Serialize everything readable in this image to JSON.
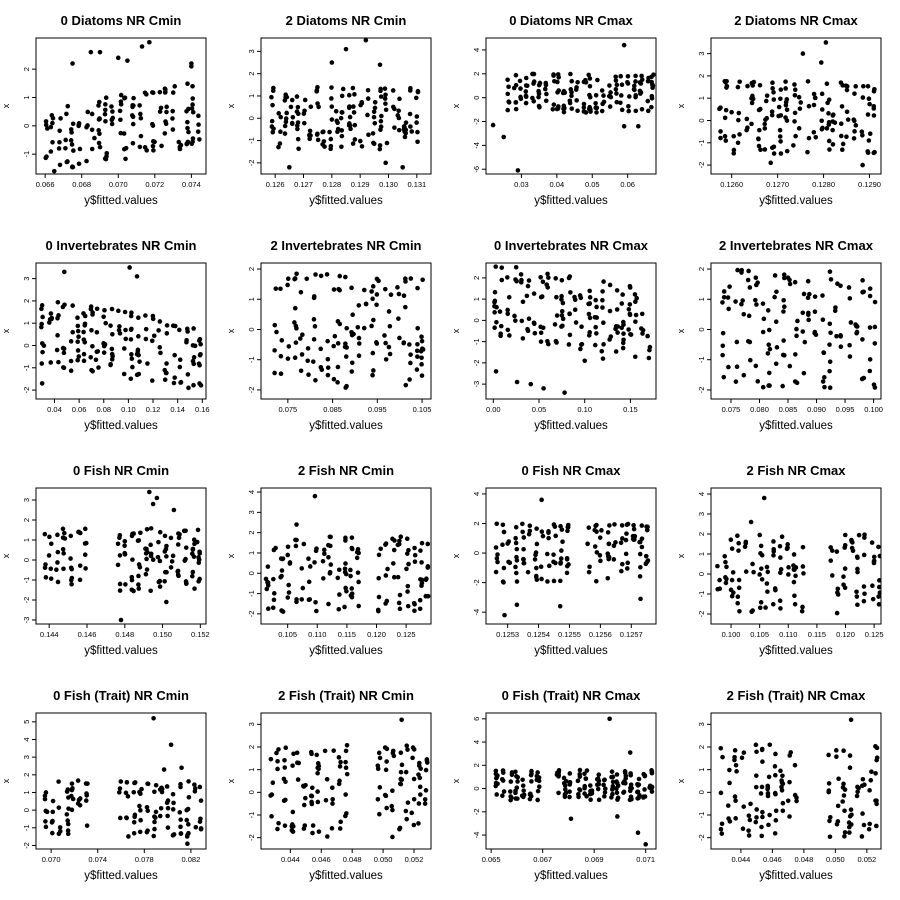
{
  "figure": {
    "background": "#ffffff",
    "point_color": "#000000"
  },
  "chart_data": [
    {
      "type": "scatter",
      "title": "0 Diatoms NR Cmin",
      "xlabel": "y$fitted.values",
      "ylabel": "x",
      "xlim": [
        0.0655,
        0.0748
      ],
      "ylim": [
        -1.7,
        3.1
      ],
      "xticks": [
        0.066,
        0.068,
        0.07,
        0.072,
        0.074
      ],
      "xtick_labels": [
        "0.066",
        "0.068",
        "0.070",
        "0.072",
        "0.074"
      ],
      "yticks": [
        -1,
        0,
        1,
        2
      ],
      "ytick_labels": [
        "-1",
        "0",
        "1",
        "2"
      ],
      "x_band": [
        0.066,
        0.0744
      ],
      "y_band": [
        -1.2,
        1.1
      ],
      "trend": "up",
      "extra_points": [
        {
          "x": 0.0675,
          "y": 2.2
        },
        {
          "x": 0.0685,
          "y": 2.6
        },
        {
          "x": 0.069,
          "y": 2.6
        },
        {
          "x": 0.0713,
          "y": 2.8
        },
        {
          "x": 0.0717,
          "y": 2.95
        },
        {
          "x": 0.0705,
          "y": 2.3
        },
        {
          "x": 0.07,
          "y": 2.4
        },
        {
          "x": 0.074,
          "y": 2.2
        },
        {
          "x": 0.074,
          "y": 2.1
        },
        {
          "x": 0.0665,
          "y": -1.6
        }
      ]
    },
    {
      "type": "scatter",
      "title": "2 Diatoms NR Cmin",
      "xlabel": "y$fitted.values",
      "ylabel": "x",
      "xlim": [
        0.1255,
        0.1315
      ],
      "ylim": [
        -2.5,
        3.6
      ],
      "xticks": [
        0.126,
        0.127,
        0.128,
        0.129,
        0.13,
        0.131
      ],
      "xtick_labels": [
        "0.126",
        "0.127",
        "0.128",
        "0.129",
        "0.130",
        "0.131"
      ],
      "yticks": [
        -2,
        -1,
        0,
        1,
        2,
        3
      ],
      "ytick_labels": [
        "-2",
        "-1",
        "0",
        "1",
        "2",
        "3"
      ],
      "x_band": [
        0.1259,
        0.131
      ],
      "y_band": [
        -1.4,
        1.4
      ],
      "trend": "flat",
      "extra_points": [
        {
          "x": 0.1285,
          "y": 3.1
        },
        {
          "x": 0.1292,
          "y": 3.5
        },
        {
          "x": 0.128,
          "y": 2.5
        },
        {
          "x": 0.1297,
          "y": 2.4
        },
        {
          "x": 0.1265,
          "y": -2.2
        },
        {
          "x": 0.1305,
          "y": -2.2
        },
        {
          "x": 0.1299,
          "y": -2.0
        }
      ]
    },
    {
      "type": "scatter",
      "title": "0 Diatoms NR Cmax",
      "xlabel": "y$fitted.values",
      "ylabel": "x",
      "xlim": [
        0.02,
        0.068
      ],
      "ylim": [
        -6.4,
        5.0
      ],
      "xticks": [
        0.03,
        0.04,
        0.05,
        0.06
      ],
      "xtick_labels": [
        "0.03",
        "0.04",
        "0.05",
        "0.06"
      ],
      "yticks": [
        -6,
        -4,
        -2,
        0,
        2,
        4
      ],
      "ytick_labels": [
        "-6",
        "-4",
        "-2",
        "0",
        "2",
        "4"
      ],
      "x_band": [
        0.026,
        0.067
      ],
      "y_band": [
        -1.3,
        2.0
      ],
      "trend": "flat",
      "extra_points": [
        {
          "x": 0.022,
          "y": -2.3
        },
        {
          "x": 0.025,
          "y": -3.3
        },
        {
          "x": 0.029,
          "y": -6.1
        },
        {
          "x": 0.059,
          "y": 4.4
        },
        {
          "x": 0.059,
          "y": -2.4
        },
        {
          "x": 0.063,
          "y": -2.4
        }
      ]
    },
    {
      "type": "scatter",
      "title": "2 Diatoms NR Cmax",
      "xlabel": "y$fitted.values",
      "ylabel": "x",
      "xlim": [
        0.12555,
        0.12925
      ],
      "ylim": [
        -2.4,
        3.7
      ],
      "xticks": [
        0.126,
        0.127,
        0.128,
        0.129
      ],
      "xtick_labels": [
        "0.1260",
        "0.1270",
        "0.1280",
        "0.1290"
      ],
      "yticks": [
        -2,
        -1,
        0,
        1,
        2,
        3
      ],
      "ytick_labels": [
        "-2",
        "-1",
        "0",
        "1",
        "2",
        "3"
      ],
      "x_band": [
        0.1257,
        0.1291
      ],
      "y_band": [
        -1.5,
        1.8
      ],
      "trend": "flat",
      "extra_points": [
        {
          "x": 0.12755,
          "y": 3.0
        },
        {
          "x": 0.12805,
          "y": 3.5
        },
        {
          "x": 0.12795,
          "y": 2.6
        },
        {
          "x": 0.12685,
          "y": -1.9
        },
        {
          "x": 0.12885,
          "y": -2.0
        }
      ]
    },
    {
      "type": "scatter",
      "title": "0 Invertebrates NR Cmin",
      "xlabel": "y$fitted.values",
      "ylabel": "x",
      "xlim": [
        0.025,
        0.163
      ],
      "ylim": [
        -2.4,
        3.7
      ],
      "xticks": [
        0.04,
        0.06,
        0.08,
        0.1,
        0.12,
        0.14,
        0.16
      ],
      "xtick_labels": [
        "0.04",
        "0.06",
        "0.08",
        "0.10",
        "0.12",
        "0.14",
        "0.16"
      ],
      "yticks": [
        -2,
        -1,
        0,
        1,
        2,
        3
      ],
      "ytick_labels": [
        "-2",
        "-1",
        "0",
        "1",
        "2",
        "3"
      ],
      "x_band": [
        0.03,
        0.158
      ],
      "y_band": [
        -1.5,
        1.6
      ],
      "trend": "down",
      "extra_points": [
        {
          "x": 0.048,
          "y": 3.3
        },
        {
          "x": 0.101,
          "y": 3.5
        },
        {
          "x": 0.107,
          "y": 3.1
        },
        {
          "x": 0.03,
          "y": 1.8
        },
        {
          "x": 0.03,
          "y": -1.7
        }
      ]
    },
    {
      "type": "scatter",
      "title": "2 Invertebrates NR Cmin",
      "xlabel": "y$fitted.values",
      "ylabel": "x",
      "xlim": [
        0.069,
        0.107
      ],
      "ylim": [
        -2.3,
        2.2
      ],
      "xticks": [
        0.075,
        0.085,
        0.095,
        0.105
      ],
      "xtick_labels": [
        "0.075",
        "0.085",
        "0.095",
        "0.105"
      ],
      "yticks": [
        -2,
        -1,
        0,
        1,
        2
      ],
      "ytick_labels": [
        "-2",
        "-1",
        "0",
        "1",
        "2"
      ],
      "x_band": [
        0.072,
        0.105
      ],
      "y_band": [
        -2.0,
        1.9
      ],
      "trend": "flat",
      "extra_points": []
    },
    {
      "type": "scatter",
      "title": "0 Invertebrates NR Cmax",
      "xlabel": "y$fitted.values",
      "ylabel": "x",
      "xlim": [
        -0.008,
        0.178
      ],
      "ylim": [
        -3.7,
        2.7
      ],
      "xticks": [
        0.0,
        0.05,
        0.1,
        0.15
      ],
      "xtick_labels": [
        "0.00",
        "0.05",
        "0.10",
        "0.15"
      ],
      "yticks": [
        -3,
        -2,
        -1,
        0,
        1,
        2
      ],
      "ytick_labels": [
        "-3",
        "-2",
        "-1",
        "0",
        "1",
        "2"
      ],
      "x_band": [
        0.0,
        0.17
      ],
      "y_band": [
        -1.3,
        2.1
      ],
      "trend": "down",
      "extra_points": [
        {
          "x": 0.003,
          "y": -2.4
        },
        {
          "x": 0.026,
          "y": -2.9
        },
        {
          "x": 0.041,
          "y": -3.0
        },
        {
          "x": 0.055,
          "y": -3.2
        },
        {
          "x": 0.078,
          "y": -3.4
        },
        {
          "x": 0.025,
          "y": 2.5
        },
        {
          "x": 0.1,
          "y": -1.9
        },
        {
          "x": 0.12,
          "y": -1.8
        }
      ]
    },
    {
      "type": "scatter",
      "title": "2 Invertebrates NR Cmax",
      "xlabel": "y$fitted.values",
      "ylabel": "x",
      "xlim": [
        0.0715,
        0.1013
      ],
      "ylim": [
        -2.3,
        2.2
      ],
      "xticks": [
        0.075,
        0.08,
        0.085,
        0.09,
        0.095,
        0.1
      ],
      "xtick_labels": [
        "0.075",
        "0.080",
        "0.085",
        "0.090",
        "0.095",
        "0.100"
      ],
      "yticks": [
        -2,
        -1,
        0,
        1,
        2
      ],
      "ytick_labels": [
        "-2",
        "-1",
        "0",
        "1",
        "2"
      ],
      "x_band": [
        0.0735,
        0.1002
      ],
      "y_band": [
        -2.0,
        2.0
      ],
      "trend": "flat",
      "extra_points": []
    },
    {
      "type": "scatter",
      "title": "0 Fish NR Cmin",
      "xlabel": "y$fitted.values",
      "ylabel": "x",
      "xlim": [
        0.1433,
        0.1523
      ],
      "ylim": [
        -3.2,
        3.6
      ],
      "xticks": [
        0.144,
        0.146,
        0.148,
        0.15,
        0.152
      ],
      "xtick_labels": [
        "0.144",
        "0.146",
        "0.148",
        "0.150",
        "0.152"
      ],
      "yticks": [
        -3,
        -2,
        -1,
        0,
        1,
        2,
        3
      ],
      "ytick_labels": [
        "-3",
        "-2",
        "-1",
        "0",
        "1",
        "2",
        "3"
      ],
      "x_band": [
        0.1437,
        0.1519
      ],
      "y_band": [
        -1.6,
        1.6
      ],
      "trend": "flat",
      "gaps": [
        [
          0.1462,
          0.1474
        ]
      ],
      "extra_points": [
        {
          "x": 0.1493,
          "y": 3.4
        },
        {
          "x": 0.1497,
          "y": 3.1
        },
        {
          "x": 0.1495,
          "y": 2.8
        },
        {
          "x": 0.1506,
          "y": 2.5
        },
        {
          "x": 0.1478,
          "y": -3.0
        },
        {
          "x": 0.1502,
          "y": -2.1
        }
      ]
    },
    {
      "type": "scatter",
      "title": "2 Fish NR Cmin",
      "xlabel": "y$fitted.values",
      "ylabel": "x",
      "xlim": [
        0.1005,
        0.1292
      ],
      "ylim": [
        -2.5,
        4.2
      ],
      "xticks": [
        0.105,
        0.11,
        0.115,
        0.12,
        0.125
      ],
      "xtick_labels": [
        "0.105",
        "0.110",
        "0.115",
        "0.120",
        "0.125"
      ],
      "yticks": [
        -2,
        -1,
        0,
        1,
        2,
        3,
        4
      ],
      "ytick_labels": [
        "-2",
        "-1",
        "0",
        "1",
        "2",
        "3",
        "4"
      ],
      "x_band": [
        0.1015,
        0.1285
      ],
      "y_band": [
        -1.9,
        1.8
      ],
      "trend": "flat",
      "gaps": [
        [
          0.117,
          0.1195
        ]
      ],
      "extra_points": [
        {
          "x": 0.1096,
          "y": 3.8
        },
        {
          "x": 0.1065,
          "y": 2.4
        },
        {
          "x": 0.1241,
          "y": 1.8
        }
      ]
    },
    {
      "type": "scatter",
      "title": "0 Fish NR Cmax",
      "xlabel": "y$fitted.values",
      "ylabel": "x",
      "xlim": [
        0.12523,
        0.12578
      ],
      "ylim": [
        -4.8,
        4.4
      ],
      "xticks": [
        0.1253,
        0.1254,
        0.1255,
        0.1256,
        0.1257
      ],
      "xtick_labels": [
        "0.1253",
        "0.1254",
        "0.1255",
        "0.1256",
        "0.1257"
      ],
      "yticks": [
        -4,
        -2,
        0,
        2,
        4
      ],
      "ytick_labels": [
        "-4",
        "-2",
        "0",
        "2",
        "4"
      ],
      "x_band": [
        0.12526,
        0.12575
      ],
      "y_band": [
        -2.0,
        2.0
      ],
      "trend": "flat",
      "gaps": [
        [
          0.1255,
          0.12556
        ]
      ],
      "extra_points": [
        {
          "x": 0.12541,
          "y": 3.6
        },
        {
          "x": 0.12529,
          "y": -4.2
        },
        {
          "x": 0.12533,
          "y": -3.5
        },
        {
          "x": 0.12547,
          "y": -3.6
        },
        {
          "x": 0.12573,
          "y": -3.1
        }
      ]
    },
    {
      "type": "scatter",
      "title": "2 Fish NR Cmax",
      "xlabel": "y$fitted.values",
      "ylabel": "x",
      "xlim": [
        0.0965,
        0.1262
      ],
      "ylim": [
        -2.5,
        4.3
      ],
      "xticks": [
        0.1,
        0.105,
        0.11,
        0.115,
        0.12,
        0.125
      ],
      "xtick_labels": [
        "0.100",
        "0.105",
        "0.110",
        "0.115",
        "0.120",
        "0.125"
      ],
      "yticks": [
        -2,
        -1,
        0,
        1,
        2,
        3,
        4
      ],
      "ytick_labels": [
        "-2",
        "-1",
        "0",
        "1",
        "2",
        "3",
        "4"
      ],
      "x_band": [
        0.0975,
        0.1258
      ],
      "y_band": [
        -2.0,
        2.0
      ],
      "trend": "flat",
      "gaps": [
        [
          0.113,
          0.1168
        ]
      ],
      "extra_points": [
        {
          "x": 0.1058,
          "y": 3.8
        },
        {
          "x": 0.1035,
          "y": 2.6
        }
      ]
    },
    {
      "type": "scatter",
      "title": "0 Fish (Trait) NR Cmin",
      "xlabel": "y$fitted.values",
      "ylabel": "x",
      "xlim": [
        0.0687,
        0.0833
      ],
      "ylim": [
        -2.2,
        5.5
      ],
      "xticks": [
        0.07,
        0.074,
        0.078,
        0.082
      ],
      "xtick_labels": [
        "0.070",
        "0.074",
        "0.078",
        "0.082"
      ],
      "yticks": [
        -2,
        -1,
        0,
        1,
        2,
        3,
        4,
        5
      ],
      "ytick_labels": [
        "-2",
        "-1",
        "0",
        "1",
        "2",
        "3",
        "4",
        "5"
      ],
      "x_band": [
        0.0695,
        0.0828
      ],
      "y_band": [
        -1.5,
        1.7
      ],
      "trend": "flat",
      "gaps": [
        [
          0.0735,
          0.0758
        ]
      ],
      "extra_points": [
        {
          "x": 0.0788,
          "y": 5.2
        },
        {
          "x": 0.0803,
          "y": 3.7
        },
        {
          "x": 0.0797,
          "y": 2.3
        },
        {
          "x": 0.0812,
          "y": 2.4
        },
        {
          "x": 0.0817,
          "y": -1.9
        }
      ]
    },
    {
      "type": "scatter",
      "title": "2 Fish (Trait) NR Cmin",
      "xlabel": "y$fitted.values",
      "ylabel": "x",
      "xlim": [
        0.0421,
        0.0531
      ],
      "ylim": [
        -2.5,
        3.5
      ],
      "xticks": [
        0.044,
        0.046,
        0.048,
        0.05,
        0.052
      ],
      "xtick_labels": [
        "0.044",
        "0.046",
        "0.048",
        "0.050",
        "0.052"
      ],
      "yticks": [
        -2,
        -1,
        0,
        1,
        2,
        3
      ],
      "ytick_labels": [
        "-2",
        "-1",
        "0",
        "1",
        "2",
        "3"
      ],
      "x_band": [
        0.0427,
        0.0528
      ],
      "y_band": [
        -2.0,
        2.1
      ],
      "trend": "flat",
      "gaps": [
        [
          0.0478,
          0.0495
        ]
      ],
      "extra_points": [
        {
          "x": 0.0512,
          "y": 3.2
        }
      ]
    },
    {
      "type": "scatter",
      "title": "0 Fish (Trait) NR Cmax",
      "xlabel": "y$fitted.values",
      "ylabel": "x",
      "xlim": [
        0.0648,
        0.0714
      ],
      "ylim": [
        -5.2,
        6.5
      ],
      "xticks": [
        0.065,
        0.067,
        0.069,
        0.071
      ],
      "xtick_labels": [
        "0.065",
        "0.067",
        "0.069",
        "0.071"
      ],
      "yticks": [
        -4,
        -2,
        0,
        2,
        4,
        6
      ],
      "ytick_labels": [
        "-4",
        "-2",
        "0",
        "2",
        "4",
        "6"
      ],
      "x_band": [
        0.0652,
        0.0712
      ],
      "y_band": [
        -1.0,
        1.6
      ],
      "trend": "flat",
      "gaps": [
        [
          0.067,
          0.0676
        ]
      ],
      "extra_points": [
        {
          "x": 0.0696,
          "y": 6.0
        },
        {
          "x": 0.0704,
          "y": 3.1
        },
        {
          "x": 0.071,
          "y": -4.8
        },
        {
          "x": 0.0707,
          "y": -3.8
        },
        {
          "x": 0.0681,
          "y": -2.6
        },
        {
          "x": 0.0699,
          "y": -2.4
        }
      ]
    },
    {
      "type": "scatter",
      "title": "2 Fish (Trait) NR Cmax",
      "xlabel": "y$fitted.values",
      "ylabel": "x",
      "xlim": [
        0.0421,
        0.0529
      ],
      "ylim": [
        -2.5,
        3.5
      ],
      "xticks": [
        0.044,
        0.046,
        0.048,
        0.05,
        0.052
      ],
      "xtick_labels": [
        "0.044",
        "0.046",
        "0.048",
        "0.050",
        "0.052"
      ],
      "yticks": [
        -2,
        -1,
        0,
        1,
        2,
        3
      ],
      "ytick_labels": [
        "-2",
        "-1",
        "0",
        "1",
        "2",
        "3"
      ],
      "x_band": [
        0.0427,
        0.0526
      ],
      "y_band": [
        -2.0,
        2.1
      ],
      "trend": "flat",
      "gaps": [
        [
          0.0478,
          0.0493
        ]
      ],
      "extra_points": [
        {
          "x": 0.051,
          "y": 3.2
        }
      ]
    }
  ]
}
